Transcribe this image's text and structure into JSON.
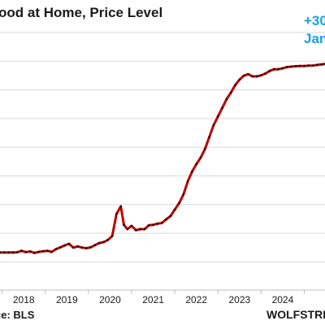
{
  "title": "ood at Home, Price Level",
  "annotation": {
    "line1": "+30",
    "line2": "Jan",
    "color": "#1ba1e2"
  },
  "source_label": "ce: BLS",
  "brand_label": "WOLFSTREE",
  "colors": {
    "line": "#c00000",
    "marker": "#111111",
    "grid": "#d9d9d9",
    "axis": "#bfbfbf",
    "tick_text": "#1a1a1a"
  },
  "chart_data": {
    "type": "line",
    "title": "ood at Home, Price Level",
    "xlabel": "",
    "ylabel": "",
    "x_ticks": [
      "2018",
      "2019",
      "2020",
      "2021",
      "2022",
      "2023",
      "2024"
    ],
    "xlim": [
      2017.45,
      2024.98
    ],
    "ylim": [
      0,
      9
    ],
    "grid": true,
    "series": [
      {
        "values": [
          [
            2017.45,
            0.42
          ],
          [
            2017.55,
            0.42
          ],
          [
            2017.65,
            0.42
          ],
          [
            2017.75,
            0.42
          ],
          [
            2017.85,
            0.43
          ],
          [
            2017.95,
            0.5
          ],
          [
            2018.05,
            0.44
          ],
          [
            2018.15,
            0.47
          ],
          [
            2018.25,
            0.4
          ],
          [
            2018.35,
            0.45
          ],
          [
            2018.45,
            0.48
          ],
          [
            2018.55,
            0.5
          ],
          [
            2018.65,
            0.45
          ],
          [
            2018.75,
            0.58
          ],
          [
            2018.85,
            0.66
          ],
          [
            2018.95,
            0.75
          ],
          [
            2019.05,
            0.82
          ],
          [
            2019.15,
            0.65
          ],
          [
            2019.25,
            0.7
          ],
          [
            2019.35,
            0.65
          ],
          [
            2019.45,
            0.62
          ],
          [
            2019.55,
            0.66
          ],
          [
            2019.65,
            0.76
          ],
          [
            2019.75,
            0.86
          ],
          [
            2019.85,
            0.9
          ],
          [
            2019.95,
            1.0
          ],
          [
            2020.05,
            1.18
          ],
          [
            2020.15,
            2.2
          ],
          [
            2020.25,
            2.55
          ],
          [
            2020.32,
            1.7
          ],
          [
            2020.4,
            1.5
          ],
          [
            2020.5,
            1.65
          ],
          [
            2020.6,
            1.45
          ],
          [
            2020.7,
            1.5
          ],
          [
            2020.8,
            1.5
          ],
          [
            2020.9,
            1.68
          ],
          [
            2021.0,
            1.7
          ],
          [
            2021.1,
            1.75
          ],
          [
            2021.2,
            1.78
          ],
          [
            2021.3,
            1.95
          ],
          [
            2021.4,
            2.1
          ],
          [
            2021.5,
            2.4
          ],
          [
            2021.6,
            2.7
          ],
          [
            2021.7,
            3.1
          ],
          [
            2021.8,
            3.7
          ],
          [
            2021.9,
            4.15
          ],
          [
            2022.0,
            4.5
          ],
          [
            2022.1,
            4.8
          ],
          [
            2022.2,
            5.2
          ],
          [
            2022.3,
            5.75
          ],
          [
            2022.4,
            6.3
          ],
          [
            2022.5,
            6.7
          ],
          [
            2022.6,
            7.1
          ],
          [
            2022.7,
            7.5
          ],
          [
            2022.8,
            7.8
          ],
          [
            2022.9,
            8.15
          ],
          [
            2023.0,
            8.4
          ],
          [
            2023.1,
            8.58
          ],
          [
            2023.2,
            8.65
          ],
          [
            2023.3,
            8.55
          ],
          [
            2023.4,
            8.55
          ],
          [
            2023.5,
            8.6
          ],
          [
            2023.6,
            8.68
          ],
          [
            2023.7,
            8.8
          ],
          [
            2023.8,
            8.88
          ],
          [
            2023.9,
            8.88
          ],
          [
            2024.0,
            8.92
          ],
          [
            2024.1,
            8.98
          ],
          [
            2024.2,
            9.0
          ],
          [
            2024.3,
            9.02
          ],
          [
            2024.4,
            9.03
          ],
          [
            2024.5,
            9.03
          ],
          [
            2024.6,
            9.05
          ],
          [
            2024.7,
            9.05
          ],
          [
            2024.8,
            9.08
          ],
          [
            2024.9,
            9.1
          ],
          [
            2024.98,
            9.12
          ]
        ]
      }
    ]
  }
}
